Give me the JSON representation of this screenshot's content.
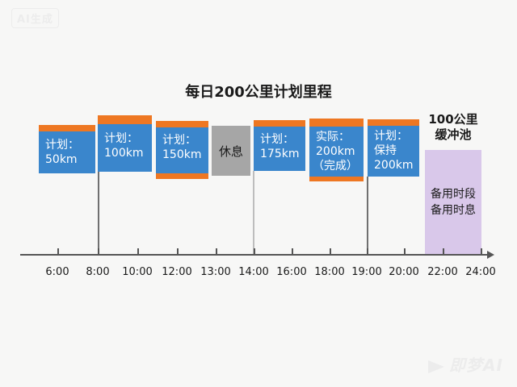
{
  "watermarks": {
    "top": "AI生成",
    "bottom": "即梦AI"
  },
  "title": "每日200公里计划里程",
  "blocks": [
    {
      "id": "plan-50",
      "line1": "计划：",
      "line2": "50km",
      "line3": ""
    },
    {
      "id": "plan-100",
      "line1": "计划：",
      "line2": "100km",
      "line3": ""
    },
    {
      "id": "plan-150",
      "line1": "计划：",
      "line2": "150km",
      "line3": ""
    },
    {
      "id": "rest",
      "label": "休息"
    },
    {
      "id": "plan-175",
      "line1": "计划：",
      "line2": "175km",
      "line3": ""
    },
    {
      "id": "actual-200",
      "line1": "实际：",
      "line2": "200km",
      "line3": "（完成）"
    },
    {
      "id": "plan-keep-200",
      "line1": "计划：",
      "line2": "保持",
      "line3": "200km"
    }
  ],
  "buffer": {
    "title_line1": "100公里",
    "title_line2": "缓冲池",
    "body_line1": "备用时段",
    "body_line2": "备用时息"
  },
  "axis": {
    "ticks": [
      "6:00",
      "8:00",
      "10:00",
      "12:00",
      "13:00",
      "14:00",
      "16:00",
      "18:00",
      "19:00",
      "20:00",
      "22:00",
      "24:00"
    ]
  },
  "colors": {
    "plan_blue": "#3a86cc",
    "accent_orange": "#ee7722",
    "rest_grey": "#a6a6a6",
    "buffer_purple": "#d9c8ea"
  }
}
